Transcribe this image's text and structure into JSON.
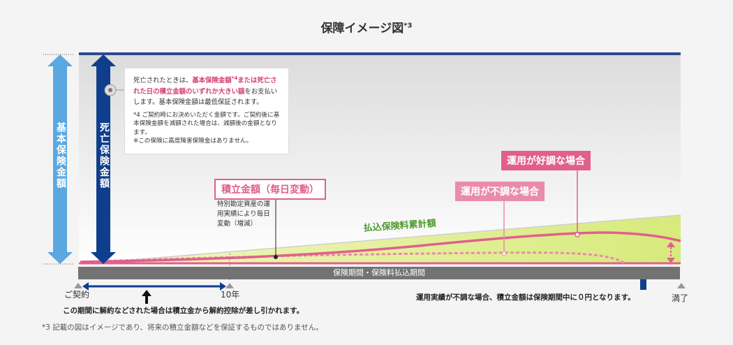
{
  "title": "保障イメージ図",
  "title_sup": "*3",
  "left_label_basic": "基本保険金額",
  "left_label_death": "死亡保険金額",
  "note": {
    "p1_a": "死亡されたときは、",
    "p1_b": "基本保険金額",
    "p1_c": "*4",
    "p1_d": "または死亡された日の積立金額のいずれか大きい額",
    "p1_e": "をお支払いします。基本保険金額は最低保証されます。",
    "p2": "*4 ご契約時にお決めいただく金額です。ご契約後に基本保険金額を減額された場合は、減額後の金額となります。",
    "p3": "※この保険に高度障害保険金はありません。"
  },
  "label_sekitate": "積立金額（毎日変動）",
  "sekitate_desc": "特別勘定資産の運用実績により毎日変動（増減）",
  "label_good": "運用が好調な場合",
  "label_bad": "運用が不調な場合",
  "label_premium": "払込保険料累計額",
  "period_bar": "保険期間・保険料払込期間",
  "tick_start": "ご契約",
  "tick_10y": "10年",
  "tick_end": "満了",
  "note_surrender": "この期間に解約などされた場合は積立金から解約控除が差し引かれます。",
  "note_zero": "運用実績が不調な場合、積立金額は保険期間中に０円となります。",
  "footnote": "*3 記載の図はイメージであり、将来の積立金額などを保証するものではありません。",
  "colors": {
    "navy": "#0f3f8c",
    "light_blue": "#5ba8e0",
    "pink": "#e0608b",
    "green": "#4e9a2a",
    "gray_bar": "#737373"
  }
}
